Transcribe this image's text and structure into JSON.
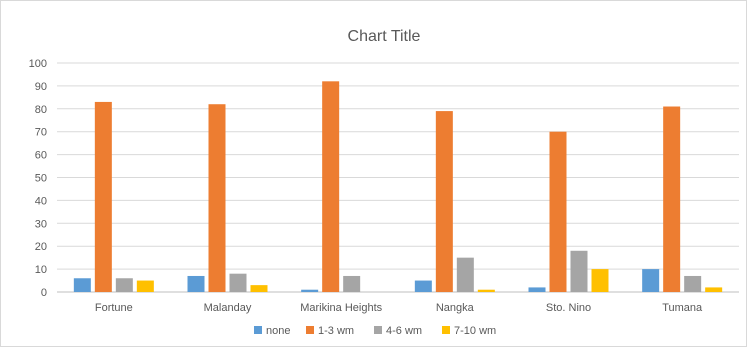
{
  "chart_data": {
    "type": "bar",
    "title": "Chart Title",
    "categories": [
      "Fortune",
      "Malanday",
      "Marikina Heights",
      "Nangka",
      "Sto. Nino",
      "Tumana"
    ],
    "series": [
      {
        "name": "none",
        "color": "#5b9bd5",
        "values": [
          6,
          7,
          1,
          5,
          2,
          10
        ]
      },
      {
        "name": "1-3 wm",
        "color": "#ed7d31",
        "values": [
          83,
          82,
          92,
          79,
          70,
          81
        ]
      },
      {
        "name": "4-6 wm",
        "color": "#a5a5a5",
        "values": [
          6,
          8,
          7,
          15,
          18,
          7
        ]
      },
      {
        "name": "7-10 wm",
        "color": "#ffc000",
        "values": [
          5,
          3,
          0,
          1,
          10,
          2
        ]
      }
    ],
    "ylim": [
      0,
      100
    ],
    "yticks": [
      0,
      10,
      20,
      30,
      40,
      50,
      60,
      70,
      80,
      90,
      100
    ],
    "grid": true,
    "legend": "bottom",
    "xlabel": "",
    "ylabel": ""
  }
}
